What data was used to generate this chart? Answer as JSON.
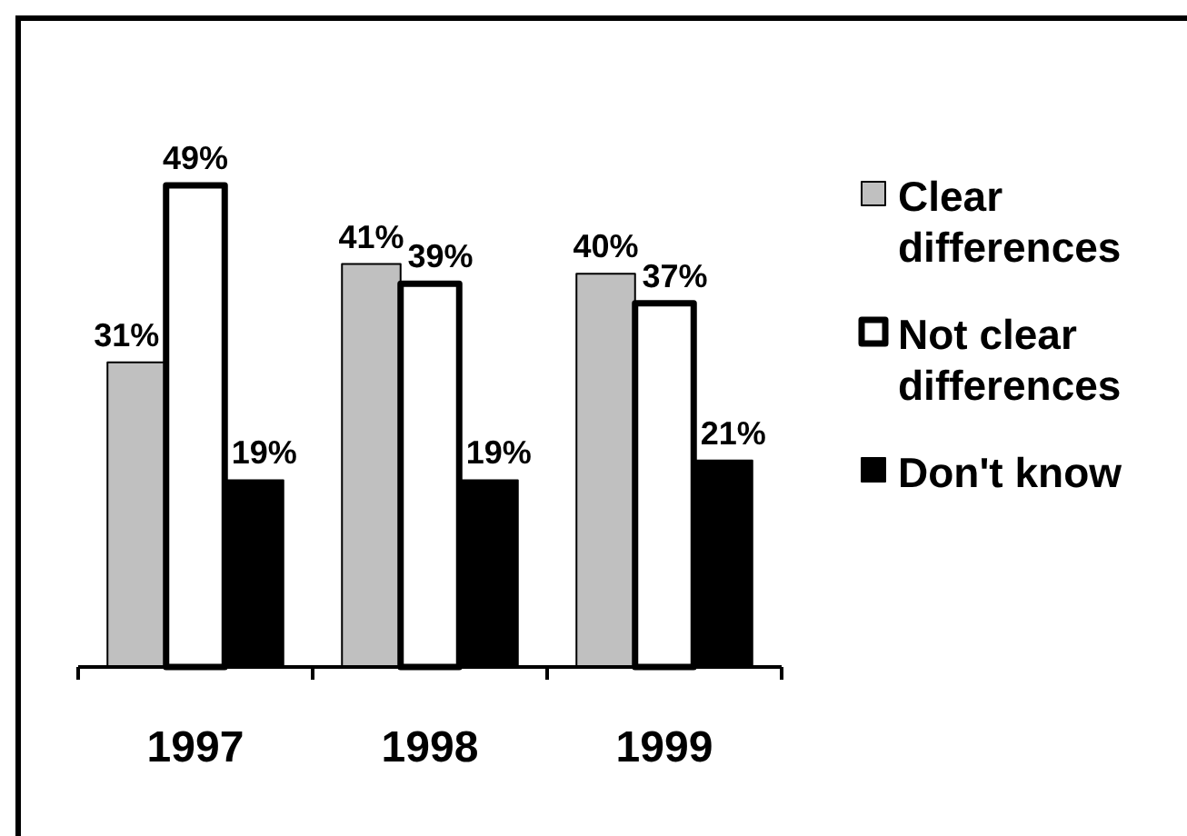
{
  "chart_data": {
    "type": "bar",
    "categories": [
      "1997",
      "1998",
      "1999"
    ],
    "series": [
      {
        "name": "Clear differences",
        "color": "#c0c0c0",
        "values": [
          31,
          41,
          40
        ],
        "value_labels": [
          "31%",
          "41%",
          "40%"
        ]
      },
      {
        "name": "Not clear differences",
        "color": "#ffffff",
        "values": [
          49,
          39,
          37
        ],
        "value_labels": [
          "49%",
          "39%",
          "37%"
        ]
      },
      {
        "name": "Don't know",
        "color": "#000000",
        "values": [
          19,
          19,
          21
        ],
        "value_labels": [
          "19%",
          "19%",
          "21%"
        ]
      }
    ],
    "legend": "right"
  }
}
